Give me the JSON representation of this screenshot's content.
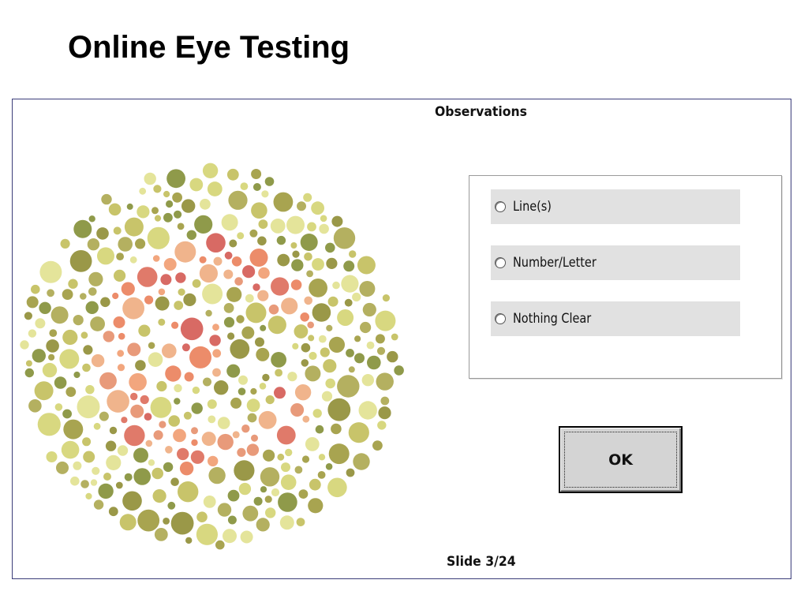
{
  "page": {
    "title": "Online Eye Testing"
  },
  "app": {
    "observations_heading": "Observations",
    "options": [
      {
        "label": "Line(s)",
        "selected": false
      },
      {
        "label": "Number/Letter",
        "selected": false
      },
      {
        "label": "Nothing Clear",
        "selected": false
      }
    ],
    "ok_label": "OK",
    "slide_counter": "Slide 3/24"
  },
  "plate": {
    "type": "ishihara-color-plate",
    "background_colors": [
      "#9a9848",
      "#a8a450",
      "#c8c46a",
      "#d8d880",
      "#e4e49a",
      "#8f9a4a",
      "#b4b060"
    ],
    "figure_colors": [
      "#e07a6a",
      "#e89a7a",
      "#f0b48c",
      "#d86a64",
      "#ec8c6a",
      "#f2a67e"
    ]
  }
}
